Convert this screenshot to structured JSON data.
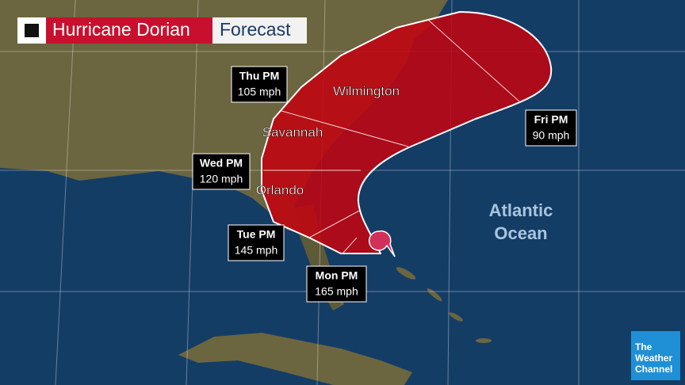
{
  "header": {
    "title": "Hurricane Dorian",
    "subtitle": "Forecast"
  },
  "forecast_points": [
    {
      "day": "Thu PM",
      "wind": "105 mph"
    },
    {
      "day": "Wed PM",
      "wind": "120 mph"
    },
    {
      "day": "Tue PM",
      "wind": "145 mph"
    },
    {
      "day": "Mon PM",
      "wind": "165 mph"
    },
    {
      "day": "Fri PM",
      "wind": "90 mph"
    }
  ],
  "cities": [
    "Wilmington",
    "Savannah",
    "Orlando"
  ],
  "ocean_label": [
    "Atlantic",
    "Ocean"
  ],
  "logo": [
    "The",
    "Weather",
    "Channel"
  ]
}
